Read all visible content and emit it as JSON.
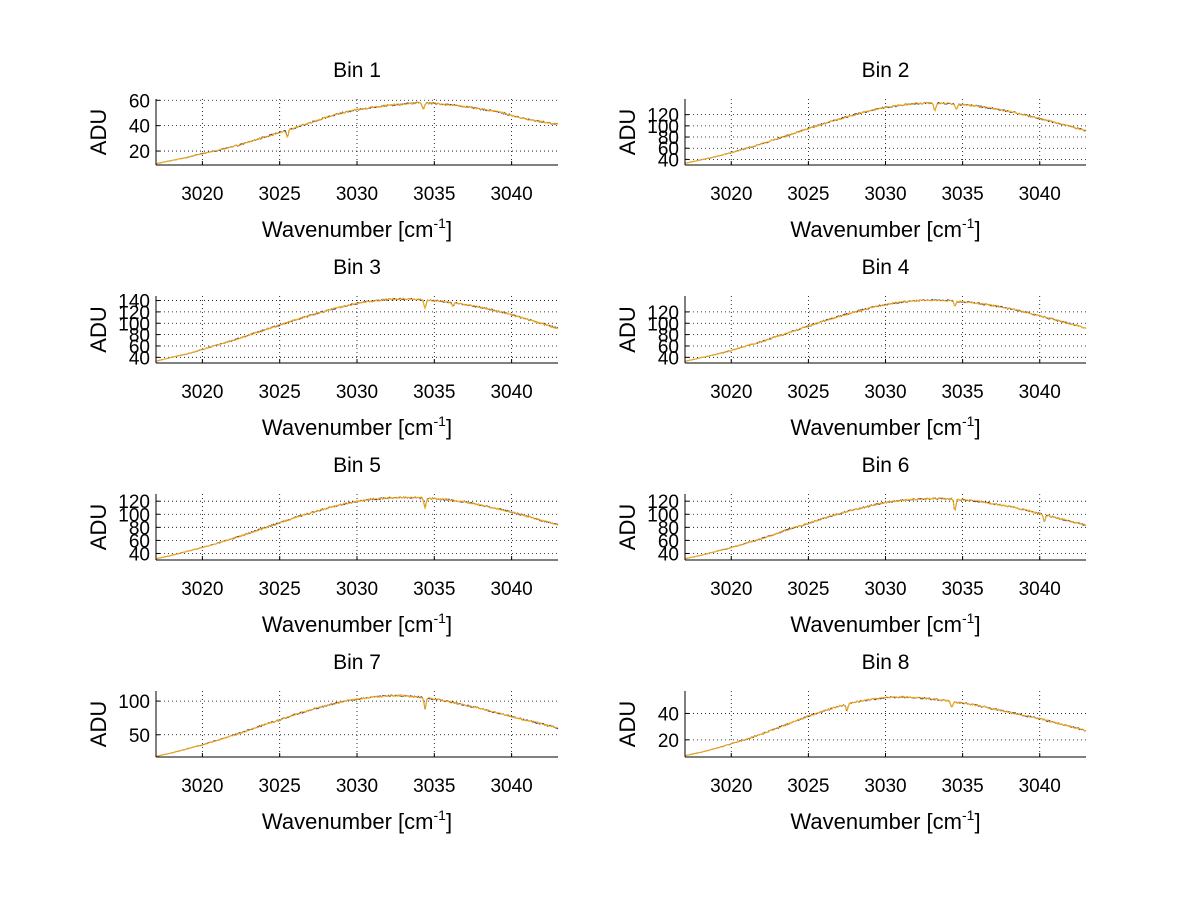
{
  "chart_data": [
    {
      "type": "line",
      "title": "Bin 1",
      "xlabel": "Wavenumber [cm",
      "xlabel_sup": "-1",
      "xlabel_end": "]",
      "ylabel": "ADU",
      "xlim": [
        3017,
        3043
      ],
      "ylim": [
        9,
        61
      ],
      "xticks": [
        3020,
        3025,
        3030,
        3035,
        3040
      ],
      "yticks": [
        20,
        40,
        60
      ],
      "grid": true,
      "series_colors": [
        "#333399",
        "#ffb000"
      ],
      "x": [
        3017,
        3018,
        3019,
        3020,
        3021,
        3022,
        3023,
        3024,
        3025,
        3026,
        3027,
        3028,
        3029,
        3030,
        3031,
        3032,
        3033,
        3034,
        3035,
        3036,
        3037,
        3038,
        3039,
        3040,
        3041,
        3042,
        3043
      ],
      "series": [
        {
          "values": [
            10,
            12.5,
            15,
            18,
            20.5,
            23.5,
            27,
            31,
            34.5,
            38.5,
            42.5,
            46.5,
            50,
            52.5,
            54.5,
            56,
            57,
            58,
            57.5,
            56.5,
            55,
            53,
            51.5,
            48,
            45,
            43,
            41
          ]
        }
      ],
      "dips": [
        [
          3025.5,
          31
        ],
        [
          3034.3,
          53
        ]
      ]
    },
    {
      "type": "line",
      "title": "Bin 2",
      "xlabel": "Wavenumber [cm",
      "xlabel_sup": "-1",
      "xlabel_end": "]",
      "ylabel": "ADU",
      "xlim": [
        3017,
        3043
      ],
      "ylim": [
        30,
        148
      ],
      "xticks": [
        3020,
        3025,
        3030,
        3035,
        3040
      ],
      "yticks": [
        40,
        60,
        80,
        100,
        120
      ],
      "grid": true,
      "series_colors": [
        "#333399",
        "#ffb000"
      ],
      "x": [
        3017,
        3018,
        3019,
        3020,
        3021,
        3022,
        3023,
        3024,
        3025,
        3026,
        3027,
        3028,
        3029,
        3030,
        3031,
        3032,
        3033,
        3034,
        3035,
        3036,
        3037,
        3038,
        3039,
        3040,
        3041,
        3042,
        3043
      ],
      "series": [
        {
          "values": [
            33,
            39,
            45,
            52,
            60,
            68,
            77,
            86,
            95,
            104,
            112,
            120,
            127,
            133,
            137,
            140,
            141,
            140,
            138,
            135,
            131,
            126,
            120,
            113,
            106,
            99,
            91
          ]
        }
      ],
      "dips": [
        [
          3033.2,
          127
        ],
        [
          3034.6,
          129
        ]
      ]
    },
    {
      "type": "line",
      "title": "Bin 3",
      "xlabel": "Wavenumber [cm",
      "xlabel_sup": "-1",
      "xlabel_end": "]",
      "ylabel": "ADU",
      "xlim": [
        3017,
        3043
      ],
      "ylim": [
        30,
        148
      ],
      "xticks": [
        3020,
        3025,
        3030,
        3035,
        3040
      ],
      "yticks": [
        40,
        60,
        80,
        100,
        120,
        140
      ],
      "grid": true,
      "series_colors": [
        "#333399",
        "#ffb000"
      ],
      "x": [
        3017,
        3018,
        3019,
        3020,
        3021,
        3022,
        3023,
        3024,
        3025,
        3026,
        3027,
        3028,
        3029,
        3030,
        3031,
        3032,
        3033,
        3034,
        3035,
        3036,
        3037,
        3038,
        3039,
        3040,
        3041,
        3042,
        3043
      ],
      "series": [
        {
          "values": [
            33,
            40,
            46,
            54,
            62,
            70,
            79,
            88,
            97,
            106,
            114,
            122,
            129,
            135,
            139,
            142,
            143,
            142,
            140,
            137,
            133,
            128,
            122,
            115,
            107,
            99,
            91
          ]
        }
      ],
      "dips": [
        [
          3034.4,
          126
        ],
        [
          3036.2,
          130
        ]
      ]
    },
    {
      "type": "line",
      "title": "Bin 4",
      "xlabel": "Wavenumber [cm",
      "xlabel_sup": "-1",
      "xlabel_end": "]",
      "ylabel": "ADU",
      "xlim": [
        3017,
        3043
      ],
      "ylim": [
        30,
        148
      ],
      "xticks": [
        3020,
        3025,
        3030,
        3035,
        3040
      ],
      "yticks": [
        40,
        60,
        80,
        100,
        120
      ],
      "grid": true,
      "series_colors": [
        "#333399",
        "#ffb000"
      ],
      "x": [
        3017,
        3018,
        3019,
        3020,
        3021,
        3022,
        3023,
        3024,
        3025,
        3026,
        3027,
        3028,
        3029,
        3030,
        3031,
        3032,
        3033,
        3034,
        3035,
        3036,
        3037,
        3038,
        3039,
        3040,
        3041,
        3042,
        3043
      ],
      "series": [
        {
          "values": [
            33,
            39,
            45,
            52,
            60,
            68,
            77,
            86,
            95,
            104,
            112,
            120,
            127,
            133,
            137,
            140,
            141,
            140,
            138,
            135,
            131,
            126,
            120,
            113,
            106,
            99,
            91
          ]
        }
      ],
      "dips": [
        [
          3034.5,
          129
        ]
      ]
    },
    {
      "type": "line",
      "title": "Bin 5",
      "xlabel": "Wavenumber [cm",
      "xlabel_sup": "-1",
      "xlabel_end": "]",
      "ylabel": "ADU",
      "xlim": [
        3017,
        3043
      ],
      "ylim": [
        30,
        131
      ],
      "xticks": [
        3020,
        3025,
        3030,
        3035,
        3040
      ],
      "yticks": [
        40,
        60,
        80,
        100,
        120
      ],
      "grid": true,
      "series_colors": [
        "#333399",
        "#ffb000"
      ],
      "x": [
        3017,
        3018,
        3019,
        3020,
        3021,
        3022,
        3023,
        3024,
        3025,
        3026,
        3027,
        3028,
        3029,
        3030,
        3031,
        3032,
        3033,
        3034,
        3035,
        3036,
        3037,
        3038,
        3039,
        3040,
        3041,
        3042,
        3043
      ],
      "series": [
        {
          "values": [
            32,
            37,
            43,
            49,
            56,
            63,
            71,
            79,
            87,
            95,
            102,
            109,
            115,
            120,
            123,
            125,
            126,
            125,
            124,
            122,
            119,
            114,
            109,
            103,
            97,
            90,
            84
          ]
        }
      ],
      "dips": [
        [
          3034.4,
          109
        ]
      ]
    },
    {
      "type": "line",
      "title": "Bin 6",
      "xlabel": "Wavenumber [cm",
      "xlabel_sup": "-1",
      "xlabel_end": "]",
      "ylabel": "ADU",
      "xlim": [
        3017,
        3043
      ],
      "ylim": [
        30,
        131
      ],
      "xticks": [
        3020,
        3025,
        3030,
        3035,
        3040
      ],
      "yticks": [
        40,
        60,
        80,
        100,
        120
      ],
      "grid": true,
      "series_colors": [
        "#333399",
        "#ffb000"
      ],
      "x": [
        3017,
        3018,
        3019,
        3020,
        3021,
        3022,
        3023,
        3024,
        3025,
        3026,
        3027,
        3028,
        3029,
        3030,
        3031,
        3032,
        3033,
        3034,
        3035,
        3036,
        3037,
        3038,
        3039,
        3040,
        3041,
        3042,
        3043
      ],
      "series": [
        {
          "values": [
            32,
            37,
            43,
            49,
            56,
            63,
            71,
            79,
            86,
            94,
            101,
            107,
            113,
            118,
            121,
            123,
            124,
            124,
            122,
            120,
            116,
            112,
            107,
            101,
            95,
            89,
            83
          ]
        }
      ],
      "dips": [
        [
          3034.5,
          106
        ],
        [
          3040.3,
          89
        ]
      ]
    },
    {
      "type": "line",
      "title": "Bin 7",
      "xlabel": "Wavenumber [cm",
      "xlabel_sup": "-1",
      "xlabel_end": "]",
      "ylabel": "ADU",
      "xlim": [
        3017,
        3043
      ],
      "ylim": [
        17,
        115
      ],
      "xticks": [
        3020,
        3025,
        3030,
        3035,
        3040
      ],
      "yticks": [
        50,
        100
      ],
      "grid": true,
      "series_colors": [
        "#333399",
        "#ffb000"
      ],
      "x": [
        3017,
        3018,
        3019,
        3020,
        3021,
        3022,
        3023,
        3024,
        3025,
        3026,
        3027,
        3028,
        3029,
        3030,
        3031,
        3032,
        3033,
        3034,
        3035,
        3036,
        3037,
        3038,
        3039,
        3040,
        3041,
        3042,
        3043
      ],
      "series": [
        {
          "values": [
            18,
            23,
            29,
            35,
            42,
            49,
            57,
            65,
            72,
            80,
            87,
            93,
            99,
            103,
            106,
            108,
            108,
            106,
            103,
            99,
            94,
            89,
            83,
            77,
            71,
            66,
            60
          ]
        }
      ],
      "dips": [
        [
          3034.4,
          89
        ]
      ]
    },
    {
      "type": "line",
      "title": "Bin 8",
      "xlabel": "Wavenumber [cm",
      "xlabel_sup": "-1",
      "xlabel_end": "]",
      "ylabel": "ADU",
      "xlim": [
        3017,
        3043
      ],
      "ylim": [
        7,
        57
      ],
      "xticks": [
        3020,
        3025,
        3030,
        3035,
        3040
      ],
      "yticks": [
        20,
        40
      ],
      "grid": true,
      "series_colors": [
        "#333399",
        "#ffb000"
      ],
      "x": [
        3017,
        3018,
        3019,
        3020,
        3021,
        3022,
        3023,
        3024,
        3025,
        3026,
        3027,
        3028,
        3029,
        3030,
        3031,
        3032,
        3033,
        3034,
        3035,
        3036,
        3037,
        3038,
        3039,
        3040,
        3041,
        3042,
        3043
      ],
      "series": [
        {
          "values": [
            8,
            10.5,
            13.5,
            17,
            20.5,
            24.5,
            29,
            33.5,
            38,
            42,
            45.5,
            48.5,
            50.5,
            52,
            52.5,
            52,
            51,
            49.5,
            48,
            46,
            43.5,
            41,
            38.5,
            36,
            33,
            30,
            27
          ]
        }
      ],
      "dips": [
        [
          3027.5,
          42
        ],
        [
          3034.3,
          45
        ],
        [
          3036.2,
          45
        ]
      ]
    }
  ]
}
